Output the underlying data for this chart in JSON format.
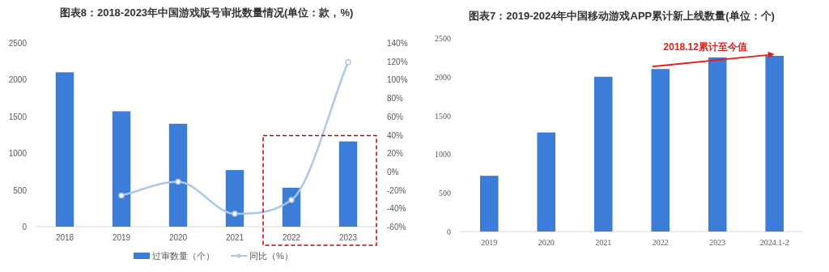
{
  "chart_data": [
    {
      "type": "bar",
      "title": "图表8：2018-2023年中国游戏版号审批数量情况(单位：款，%)",
      "categories": [
        "2018",
        "2019",
        "2020",
        "2021",
        "2022",
        "2023"
      ],
      "series": [
        {
          "name": "过审数量（个）",
          "type": "bar",
          "color": "#3b7dd8",
          "values": [
            2100,
            1570,
            1400,
            770,
            530,
            1160
          ]
        },
        {
          "name": "同比（%）",
          "type": "line",
          "axis": "y2",
          "color": "#a9c8ea",
          "marker": "circle",
          "values": [
            null,
            -26,
            -11,
            -46,
            -31,
            119
          ]
        }
      ],
      "ylim": [
        0,
        2500
      ],
      "yticks": [
        0,
        500,
        1000,
        1500,
        2000,
        2500
      ],
      "y2lim": [
        -60,
        140
      ],
      "y2ticks": [
        {
          "value": -60,
          "label": "-60%"
        },
        {
          "value": -40,
          "label": "-40%"
        },
        {
          "value": -20,
          "label": "-20%"
        },
        {
          "value": 0,
          "label": "0%"
        },
        {
          "value": 20,
          "label": "20%"
        },
        {
          "value": 40,
          "label": "40%"
        },
        {
          "value": 60,
          "label": "60%"
        },
        {
          "value": 80,
          "label": "80%"
        },
        {
          "value": 100,
          "label": "100%"
        },
        {
          "value": 120,
          "label": "120%"
        },
        {
          "value": 140,
          "label": "140%"
        }
      ],
      "legend": "bottom",
      "grid": false
    },
    {
      "type": "bar",
      "title": "图表7：2019-2024年中国移动游戏APP累计新上线数量(单位：个)",
      "categories": [
        "2019",
        "2020",
        "2021",
        "2022",
        "2023",
        "2024.1-2"
      ],
      "values": [
        720,
        1280,
        2000,
        2100,
        2250,
        2270
      ],
      "color": "#3b7dd8",
      "ylim": [
        0,
        2500
      ],
      "yticks": [
        0,
        500,
        1000,
        1500,
        2000,
        2500
      ],
      "annotations": [
        "2018.12累计至今值"
      ],
      "grid": false
    }
  ]
}
